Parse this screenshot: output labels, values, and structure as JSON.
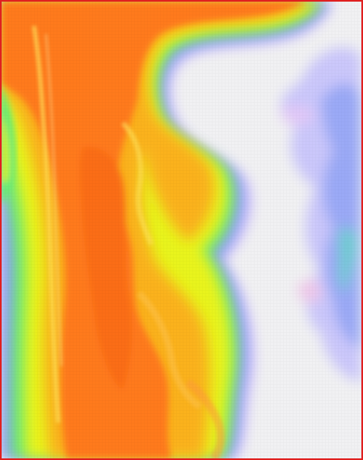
{
  "figure": {
    "description_colors": {
      "background": "#f1f1f3",
      "border": "#e02020",
      "hot": "#ff7a1a",
      "warm": "#ffb31a",
      "yellow": "#e8f21a",
      "green": "#63f07a",
      "cyan": "#36d6c9",
      "blue": "#8a9df7",
      "lavender": "#d7c8fb"
    }
  }
}
